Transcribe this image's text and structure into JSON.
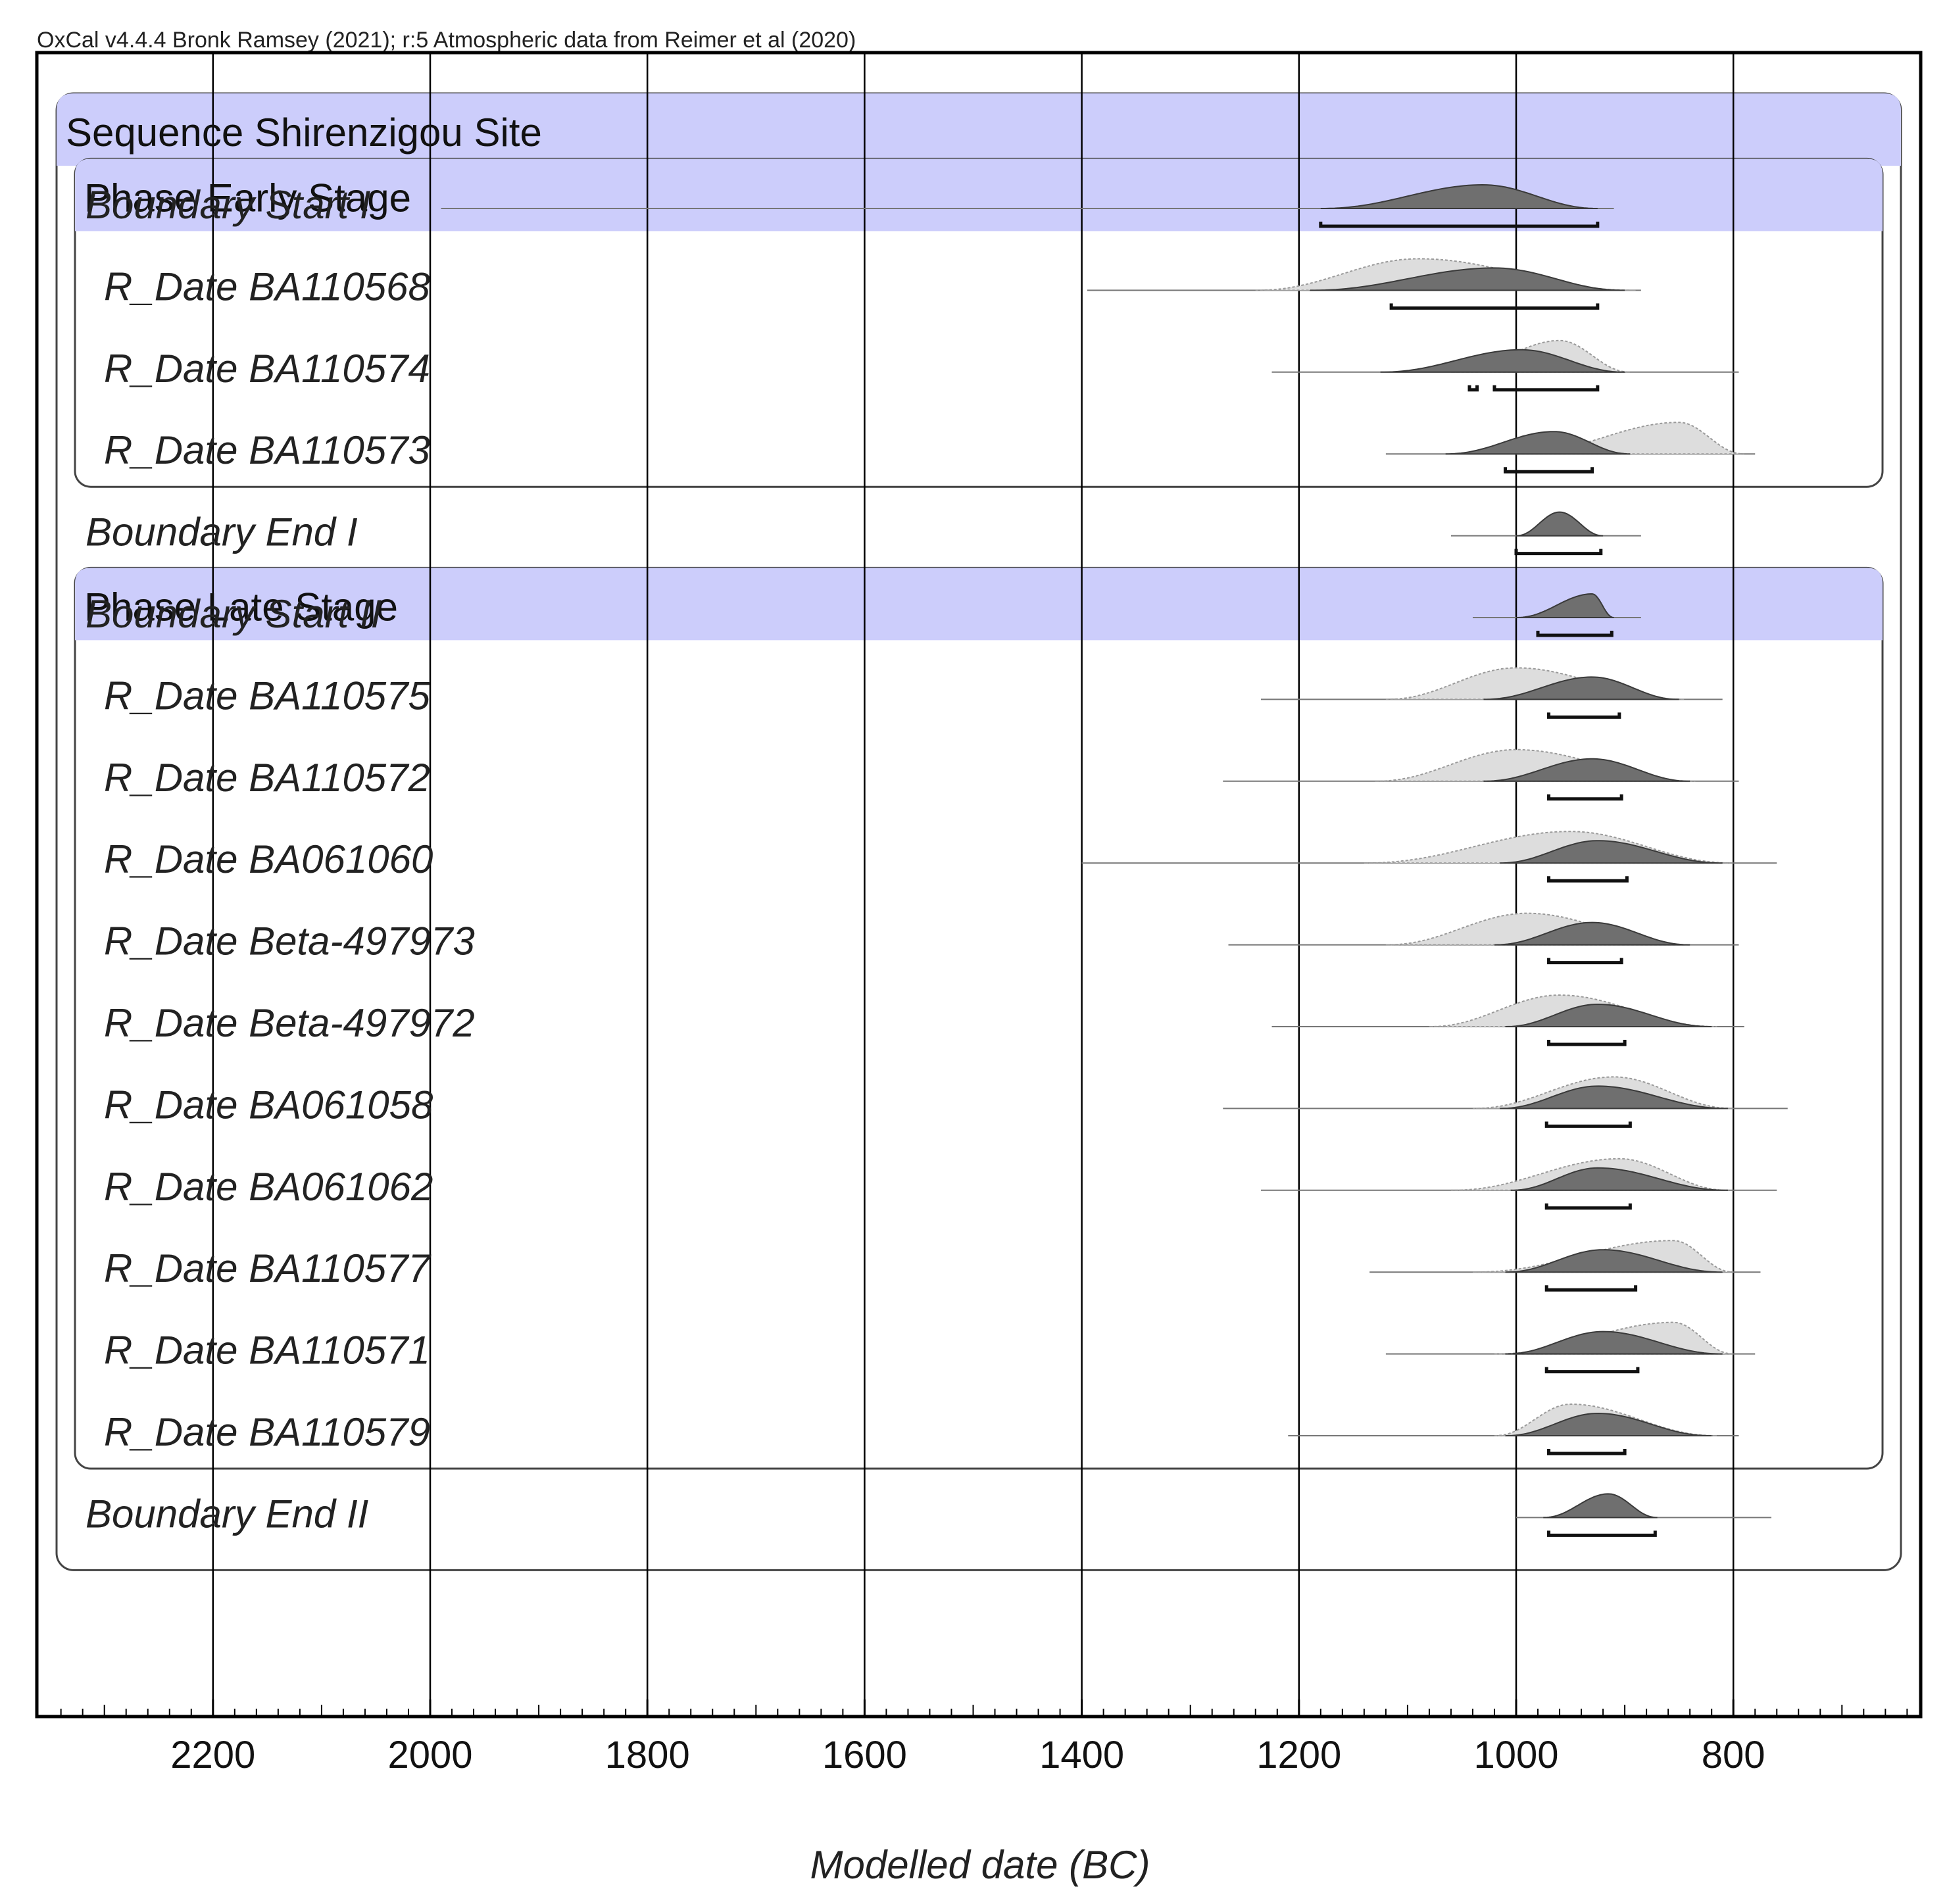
{
  "chart_data": {
    "type": "oxcal-multiplot",
    "credit": "OxCal v4.4.4 Bronk Ramsey (2021); r:5 Atmospheric data from Reimer et al (2020)",
    "xlabel": "Modelled date (BC)",
    "x_ticks": [
      2200,
      2000,
      1800,
      1600,
      1400,
      1200,
      1000,
      800
    ],
    "xlim": [
      2360,
      630
    ],
    "grid": true,
    "sequence": {
      "label": "Sequence Shirenzigou Site"
    },
    "phases": [
      {
        "label": "Phase Early Stage"
      },
      {
        "label": "Phase Late Stage"
      }
    ],
    "rows": [
      {
        "label": "Boundary Start I",
        "kind": "boundary",
        "phase": null,
        "line": [
          1990,
          910
        ],
        "post_peak": 1030,
        "post_range": [
          1180,
          925
        ],
        "post_hpd": [
          [
            1180,
            925
          ]
        ]
      },
      {
        "label": "R_Date BA110568",
        "kind": "date",
        "phase": 0,
        "line": [
          1395,
          885
        ],
        "prior_range": [
          1240,
          890
        ],
        "prior_peak": 1090,
        "post_peak": 1020,
        "post_range": [
          1190,
          900
        ],
        "post_hpd": [
          [
            1115,
            925
          ]
        ]
      },
      {
        "label": "R_Date BA110574",
        "kind": "date",
        "phase": 0,
        "line": [
          1225,
          795
        ],
        "prior_range": [
          1060,
          895
        ],
        "prior_peak": 960,
        "post_peak": 995,
        "post_range": [
          1125,
          900
        ],
        "post_hpd": [
          [
            1043,
            1036
          ],
          [
            1020,
            925
          ]
        ]
      },
      {
        "label": "R_Date BA110573",
        "kind": "date",
        "phase": 0,
        "line": [
          1120,
          780
        ],
        "prior_range": [
          1000,
          790
        ],
        "prior_peak": 850,
        "post_peak": 965,
        "post_range": [
          1065,
          895
        ],
        "post_hpd": [
          [
            1010,
            930
          ]
        ]
      },
      {
        "label": "Boundary End I",
        "kind": "boundary",
        "phase": null,
        "line": [
          1060,
          885
        ],
        "post_peak": 960,
        "post_range": [
          1000,
          920
        ],
        "post_hpd": [
          [
            1000,
            922
          ]
        ]
      },
      {
        "label": "Boundary Start II",
        "kind": "boundary",
        "phase": null,
        "line": [
          1040,
          885
        ],
        "post_peak": 930,
        "post_range": [
          1000,
          910
        ],
        "post_hpd": [
          [
            980,
            912
          ]
        ]
      },
      {
        "label": "R_Date BA110575",
        "kind": "date",
        "phase": 1,
        "line": [
          1235,
          810
        ],
        "prior_range": [
          1120,
          845
        ],
        "prior_peak": 1000,
        "post_peak": 930,
        "post_range": [
          1030,
          850
        ],
        "post_hpd": [
          [
            970,
            905
          ]
        ]
      },
      {
        "label": "R_Date BA110572",
        "kind": "date",
        "phase": 1,
        "line": [
          1270,
          795
        ],
        "prior_range": [
          1130,
          835
        ],
        "prior_peak": 1000,
        "post_peak": 930,
        "post_range": [
          1030,
          840
        ],
        "post_hpd": [
          [
            970,
            903
          ]
        ]
      },
      {
        "label": "R_Date BA061060",
        "kind": "date",
        "phase": 1,
        "line": [
          1400,
          760
        ],
        "prior_range": [
          1140,
          800
        ],
        "prior_peak": 950,
        "post_peak": 925,
        "post_range": [
          1015,
          810
        ],
        "post_hpd": [
          [
            970,
            898
          ]
        ]
      },
      {
        "label": "R_Date Beta-497973",
        "kind": "date",
        "phase": 1,
        "line": [
          1265,
          795
        ],
        "prior_range": [
          1120,
          840
        ],
        "prior_peak": 990,
        "post_peak": 930,
        "post_range": [
          1020,
          840
        ],
        "post_hpd": [
          [
            970,
            903
          ]
        ]
      },
      {
        "label": "R_Date Beta-497972",
        "kind": "date",
        "phase": 1,
        "line": [
          1225,
          790
        ],
        "prior_range": [
          1080,
          815
        ],
        "prior_peak": 960,
        "post_peak": 925,
        "post_range": [
          1010,
          820
        ],
        "post_hpd": [
          [
            970,
            900
          ]
        ]
      },
      {
        "label": "R_Date BA061058",
        "kind": "date",
        "phase": 1,
        "line": [
          1270,
          750
        ],
        "prior_range": [
          1040,
          800
        ],
        "prior_peak": 910,
        "post_peak": 925,
        "post_range": [
          1015,
          805
        ],
        "post_hpd": [
          [
            972,
            895
          ]
        ]
      },
      {
        "label": "R_Date BA061062",
        "kind": "date",
        "phase": 1,
        "line": [
          1235,
          760
        ],
        "prior_range": [
          1060,
          805
        ],
        "prior_peak": 905,
        "post_peak": 925,
        "post_range": [
          1005,
          805
        ],
        "post_hpd": [
          [
            972,
            895
          ]
        ]
      },
      {
        "label": "R_Date BA110577",
        "kind": "date",
        "phase": 1,
        "line": [
          1135,
          775
        ],
        "prior_range": [
          1040,
          800
        ],
        "prior_peak": 855,
        "post_peak": 920,
        "post_range": [
          1010,
          810
        ],
        "post_hpd": [
          [
            972,
            890
          ]
        ]
      },
      {
        "label": "R_Date BA110571",
        "kind": "date",
        "phase": 1,
        "line": [
          1120,
          780
        ],
        "prior_range": [
          1020,
          800
        ],
        "prior_peak": 855,
        "post_peak": 920,
        "post_range": [
          1010,
          810
        ],
        "post_hpd": [
          [
            972,
            888
          ]
        ]
      },
      {
        "label": "R_Date BA110579",
        "kind": "date",
        "phase": 1,
        "line": [
          1210,
          795
        ],
        "prior_range": [
          1020,
          815
        ],
        "prior_peak": 950,
        "post_peak": 925,
        "post_range": [
          1010,
          820
        ],
        "post_hpd": [
          [
            970,
            900
          ]
        ]
      },
      {
        "label": "Boundary End II",
        "kind": "boundary",
        "phase": null,
        "line": [
          1000,
          765
        ],
        "post_peak": 915,
        "post_range": [
          975,
          870
        ],
        "post_hpd": [
          [
            970,
            872
          ]
        ]
      }
    ],
    "colors": {
      "header_fill": "#cccdfb",
      "prior_fill": "#dddddd",
      "prior_stroke": "#9a9a9a",
      "post_fill": "#6f6f6f",
      "post_stroke": "#3a3a3a",
      "grid": "#000000",
      "frame": "#000000"
    }
  }
}
